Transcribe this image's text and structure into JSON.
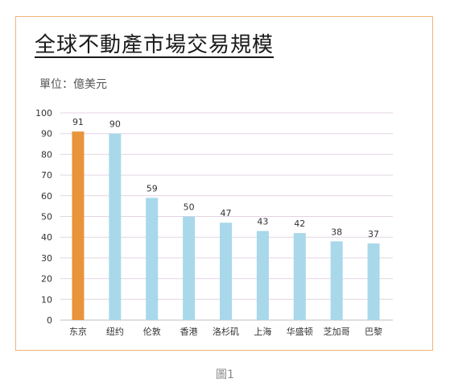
{
  "title": "全球不動產市場交易規模",
  "unit_label": "單位：億美元",
  "caption": "圖1",
  "chart_data": {
    "type": "bar",
    "title": "全球不動產市場交易規模",
    "ylabel": "單位：億美元",
    "xlabel": "",
    "ylim": [
      0,
      100
    ],
    "yticks": [
      0,
      10,
      20,
      30,
      40,
      50,
      60,
      70,
      80,
      90,
      100
    ],
    "categories": [
      "东京",
      "纽约",
      "伦敦",
      "香港",
      "洛杉矶",
      "上海",
      "华盛顿",
      "芝加哥",
      "巴黎"
    ],
    "values": [
      91,
      90,
      59,
      50,
      47,
      43,
      42,
      38,
      37
    ],
    "colors": [
      "#e8943a",
      "#a8d8ea",
      "#a8d8ea",
      "#a8d8ea",
      "#a8d8ea",
      "#a8d8ea",
      "#a8d8ea",
      "#a8d8ea",
      "#a8d8ea"
    ],
    "grid": true,
    "legend": "none"
  }
}
